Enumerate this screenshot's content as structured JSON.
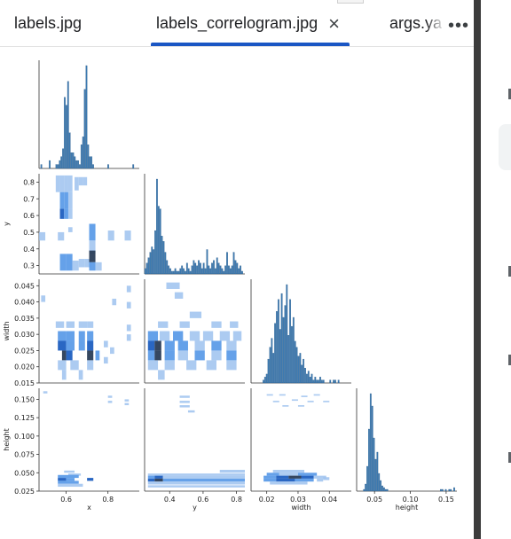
{
  "tabs": [
    {
      "label": "labels.jpg",
      "active": false
    },
    {
      "label": "labels_correlogram.jpg",
      "active": true,
      "close": "×"
    },
    {
      "label": "args.ya",
      "active": false
    }
  ],
  "more_label": "•••",
  "colors": {
    "hist": "#3d7ab1",
    "hist_light": "#9ec2ee",
    "hist_mid": "#5d9ce8",
    "hist_dark": "#1f5fc0",
    "hist_darkest": "#2a3d57",
    "active_tab": "#1a56c4"
  },
  "chart_data": {
    "type": "correlogram",
    "variables": [
      "x",
      "y",
      "width",
      "height"
    ],
    "axes": {
      "x": {
        "label": "x",
        "ticks": [
          "0.6",
          "0.8"
        ],
        "range": [
          0.47,
          0.95
        ]
      },
      "y": {
        "label": "y",
        "ticks": [
          "0.3",
          "0.4",
          "0.5",
          "0.6",
          "0.7",
          "0.8"
        ],
        "range": [
          0.25,
          0.85
        ]
      },
      "width": {
        "label": "width",
        "ticks": [
          "0.015",
          "0.020",
          "0.025",
          "0.030",
          "0.035",
          "0.040",
          "0.045"
        ],
        "xticks": [
          "0.02",
          "0.03",
          "0.04"
        ],
        "range": [
          0.015,
          0.047
        ]
      },
      "height": {
        "label": "height",
        "ticks": [
          "0.025",
          "0.050",
          "0.075",
          "0.100",
          "0.125",
          "0.150"
        ],
        "xticks": [
          "0.05",
          "0.10",
          "0.15"
        ],
        "range": [
          0.025,
          0.165
        ]
      }
    },
    "hist_x": {
      "range": [
        0.47,
        0.95
      ],
      "counts": [
        0,
        1,
        0,
        0,
        0,
        0,
        2,
        0,
        0,
        0,
        1,
        1,
        2,
        3,
        5,
        18,
        16,
        22,
        9,
        4,
        4,
        3,
        2,
        2,
        1,
        6,
        8,
        20,
        26,
        6,
        3,
        3,
        1,
        0,
        0,
        0,
        0,
        0,
        0,
        0,
        0,
        1,
        0,
        0,
        0,
        0,
        0,
        0,
        0,
        0,
        0,
        0,
        0,
        0,
        0,
        0,
        1,
        0,
        0,
        0
      ]
    },
    "hist_y": {
      "range": [
        0.25,
        0.85
      ],
      "counts": [
        2,
        4,
        6,
        8,
        10,
        9,
        16,
        35,
        25,
        24,
        14,
        12,
        8,
        5,
        3,
        2,
        1,
        1,
        2,
        1,
        1,
        2,
        3,
        2,
        1,
        4,
        2,
        1,
        3,
        5,
        4,
        3,
        5,
        4,
        2,
        4,
        2,
        9,
        3,
        2,
        4,
        5,
        2,
        6,
        4,
        3,
        2,
        1,
        3,
        8,
        3,
        2,
        3,
        8,
        5,
        4,
        2,
        3,
        1,
        0
      ]
    },
    "hist_width": {
      "range": [
        0.015,
        0.047
      ],
      "counts": [
        0,
        0,
        0,
        0,
        0,
        0,
        0,
        1,
        2,
        3,
        8,
        12,
        15,
        10,
        20,
        24,
        28,
        18,
        30,
        22,
        26,
        33,
        16,
        28,
        19,
        22,
        14,
        12,
        9,
        10,
        6,
        8,
        5,
        3,
        4,
        2,
        3,
        1,
        2,
        1,
        1,
        2,
        1,
        1,
        0,
        0,
        0,
        1,
        0,
        1,
        1,
        0,
        1,
        0,
        0,
        0,
        0,
        0,
        0,
        0
      ]
    },
    "hist_height": {
      "range": [
        0.025,
        0.165
      ],
      "counts": [
        0,
        0,
        0,
        0,
        1,
        4,
        14,
        35,
        55,
        48,
        30,
        18,
        22,
        10,
        6,
        3,
        2,
        1,
        1,
        0,
        0,
        0,
        0,
        0,
        0,
        0,
        0,
        0,
        0,
        0,
        0,
        0,
        0,
        0,
        0,
        0,
        0,
        0,
        0,
        0,
        0,
        0,
        0,
        0,
        0,
        0,
        0,
        0,
        0,
        0,
        1,
        1,
        0,
        1,
        0,
        1,
        1,
        0,
        2,
        0
      ]
    }
  }
}
